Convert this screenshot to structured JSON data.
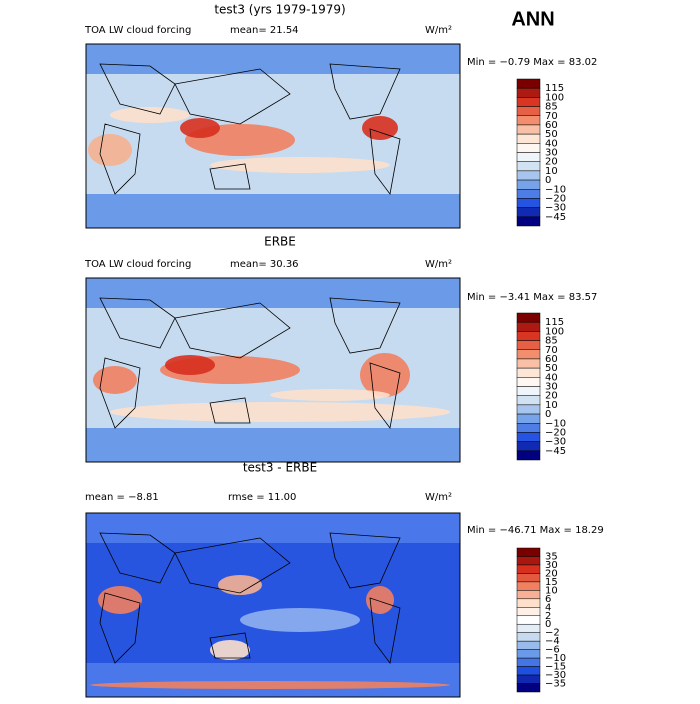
{
  "header": {
    "season": "ANN"
  },
  "panels": [
    {
      "title": "test3 (yrs 1979-1979)",
      "left": "TOA LW cloud forcing",
      "middle": "mean=  21.54",
      "unit": "W/m²",
      "range": "Min =  −0.79 Max =  83.02",
      "levels": [
        "115",
        "100",
        "85",
        "70",
        "60",
        "50",
        "40",
        "30",
        "20",
        "10",
        "0",
        "−10",
        "−20",
        "−30",
        "−45"
      ]
    },
    {
      "title": "ERBE",
      "left": "TOA LW cloud forcing",
      "middle": "mean=  30.36",
      "unit": "W/m²",
      "range": "Min =  −3.41 Max =  83.57",
      "levels": [
        "115",
        "100",
        "85",
        "70",
        "60",
        "50",
        "40",
        "30",
        "20",
        "10",
        "0",
        "−10",
        "−20",
        "−30",
        "−45"
      ]
    },
    {
      "title": "test3 - ERBE",
      "left": "mean =  −8.81",
      "middle": "rmse =  11.00",
      "unit": "W/m²",
      "range": "Min = −46.71 Max =  18.29",
      "levels": [
        "35",
        "30",
        "20",
        "15",
        "10",
        "6",
        "4",
        "2",
        "0",
        "−2",
        "−4",
        "−6",
        "−10",
        "−15",
        "−30",
        "−35"
      ]
    }
  ]
}
